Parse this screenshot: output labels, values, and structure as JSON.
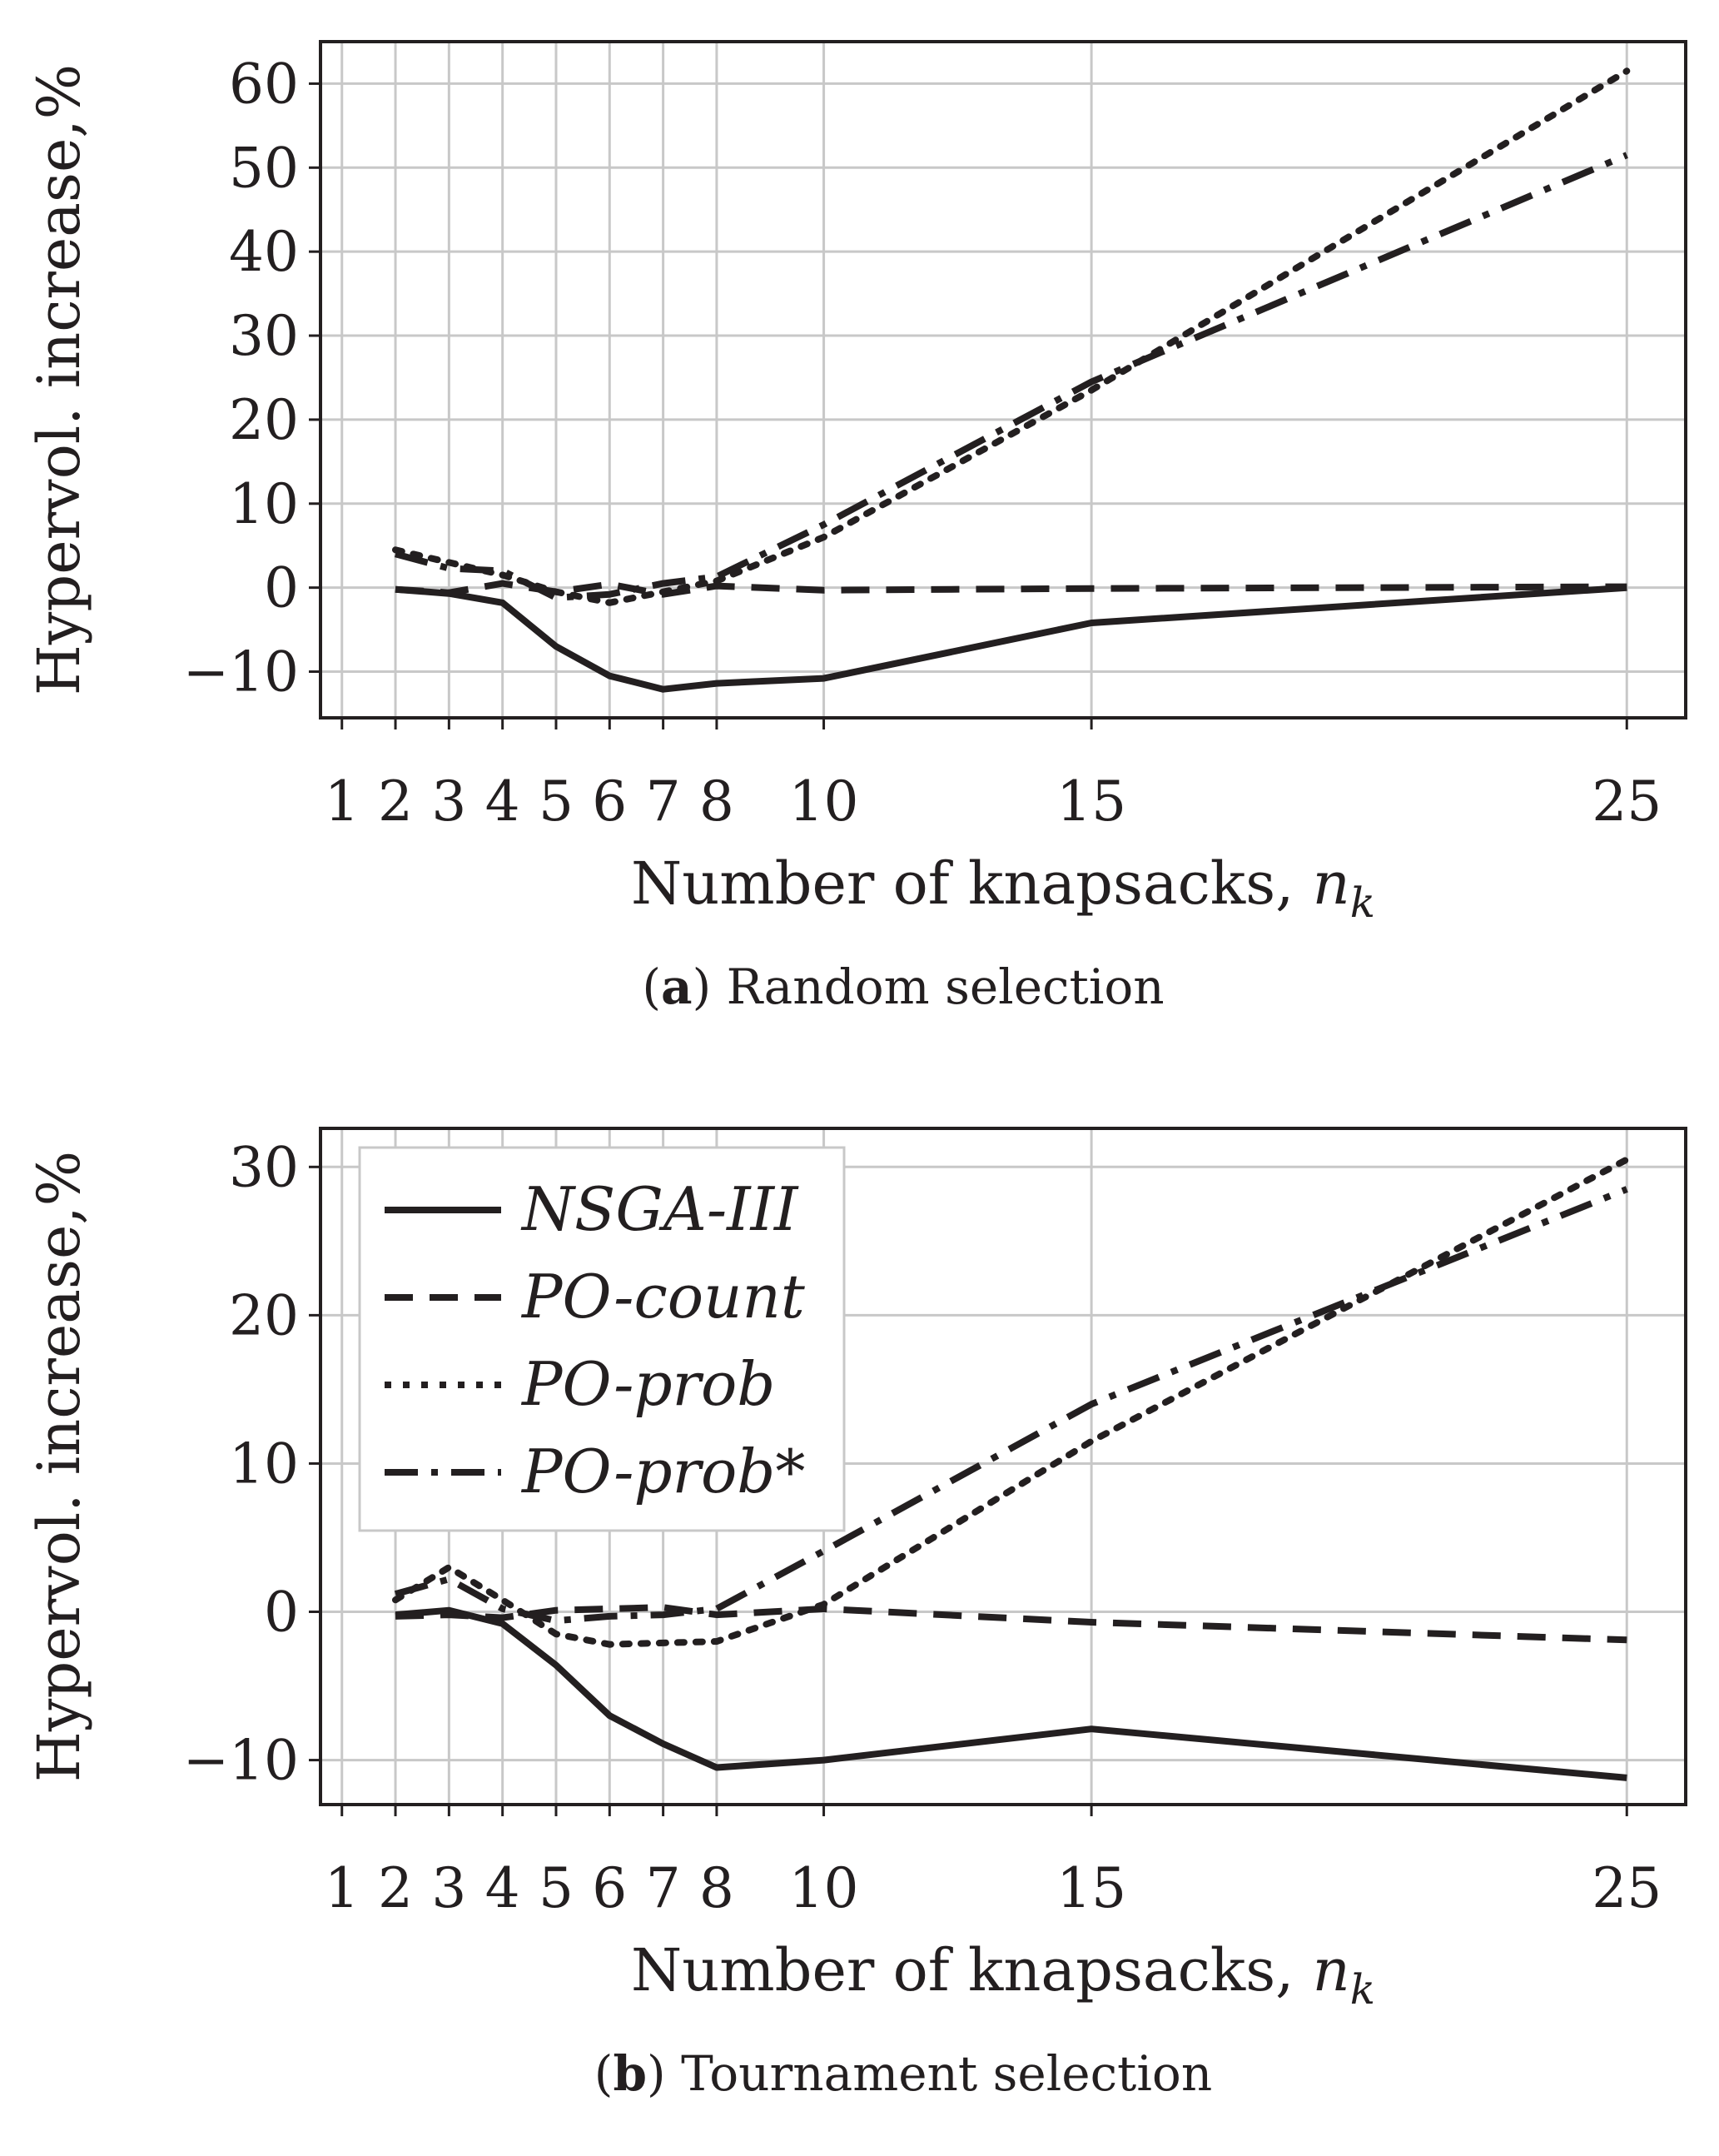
{
  "chart_data": [
    {
      "id": "a",
      "type": "line",
      "caption_label": "a",
      "caption_text": "Random selection",
      "xlabel": "Number of knapsacks, ",
      "xlabel_math": "n",
      "xlabel_sub": "k",
      "ylabel": "Hypervol. increase,%",
      "xlim": [
        0.6,
        26.1
      ],
      "ylim": [
        -15.5,
        65
      ],
      "xticks": [
        1,
        2,
        3,
        4,
        5,
        6,
        7,
        8,
        10,
        15,
        25
      ],
      "yticks": [
        -10,
        0,
        10,
        20,
        30,
        40,
        50,
        60
      ],
      "ytick_labels": [
        "−10",
        "0",
        "10",
        "20",
        "30",
        "40",
        "50",
        "60"
      ],
      "grid": true,
      "series": [
        {
          "name": "NSGA-III",
          "style": "solid",
          "x": [
            2,
            3,
            4,
            5,
            6,
            7,
            8,
            10,
            15,
            25
          ],
          "y": [
            -0.2,
            -0.7,
            -1.8,
            -7,
            -10.5,
            -12.1,
            -11.4,
            -10.8,
            -4.2,
            0
          ]
        },
        {
          "name": "PO-count",
          "style": "dashed",
          "x": [
            2,
            3,
            4,
            5,
            6,
            7,
            8,
            10,
            15,
            25
          ],
          "y": [
            -0.2,
            -0.6,
            0.5,
            -0.5,
            0.4,
            -0.8,
            0.2,
            -0.3,
            -0.1,
            0.1
          ]
        },
        {
          "name": "PO-prob",
          "style": "dotted",
          "x": [
            2,
            3,
            4,
            5,
            6,
            7,
            8,
            10,
            15,
            25
          ],
          "y": [
            4.5,
            3,
            1.5,
            -0.5,
            -1.8,
            -0.5,
            0.8,
            6,
            23.5,
            61.5
          ]
        },
        {
          "name": "PO-prob*",
          "style": "dashdot",
          "x": [
            2,
            3,
            4,
            5,
            6,
            7,
            8,
            10,
            15,
            25
          ],
          "y": [
            4,
            2.3,
            2,
            -1.2,
            -0.8,
            0.5,
            1.3,
            7.5,
            24.5,
            51.5
          ]
        }
      ]
    },
    {
      "id": "b",
      "type": "line",
      "caption_label": "b",
      "caption_text": "Tournament selection",
      "xlabel": "Number of knapsacks, ",
      "xlabel_math": "n",
      "xlabel_sub": "k",
      "ylabel": "Hypervol. increase,%",
      "xlim": [
        0.6,
        26.1
      ],
      "ylim": [
        -13,
        32.6
      ],
      "xticks": [
        1,
        2,
        3,
        4,
        5,
        6,
        7,
        8,
        10,
        15,
        25
      ],
      "yticks": [
        -10,
        0,
        10,
        20,
        30
      ],
      "ytick_labels": [
        "−10",
        "0",
        "10",
        "20",
        "30"
      ],
      "grid": true,
      "legend": {
        "placement": "top-left",
        "entries": [
          "NSGA-III",
          "PO-count",
          "PO-prob",
          "PO-prob*"
        ]
      },
      "series": [
        {
          "name": "NSGA-III",
          "style": "solid",
          "x": [
            2,
            3,
            4,
            5,
            6,
            7,
            8,
            10,
            15,
            25
          ],
          "y": [
            -0.2,
            0.1,
            -0.8,
            -3.6,
            -7,
            -8.9,
            -10.5,
            -10,
            -7.9,
            -11.2
          ]
        },
        {
          "name": "PO-count",
          "style": "dashed",
          "x": [
            2,
            3,
            4,
            5,
            6,
            7,
            8,
            10,
            15,
            25
          ],
          "y": [
            -0.3,
            -0.2,
            -0.4,
            0.1,
            0.2,
            0.3,
            -0.2,
            0.2,
            -0.7,
            -1.9
          ]
        },
        {
          "name": "PO-prob",
          "style": "dotted",
          "x": [
            2,
            3,
            4,
            5,
            6,
            7,
            8,
            10,
            15,
            25
          ],
          "y": [
            0.8,
            3,
            0.8,
            -1.5,
            -2.2,
            -2.1,
            -2,
            0.5,
            11.5,
            30.5
          ]
        },
        {
          "name": "PO-prob*",
          "style": "dashdot",
          "x": [
            2,
            3,
            4,
            5,
            6,
            7,
            8,
            10,
            15,
            25
          ],
          "y": [
            1.2,
            2.2,
            0.2,
            -0.6,
            -0.3,
            -0.2,
            0.2,
            4.1,
            14,
            28.5
          ]
        }
      ]
    }
  ]
}
